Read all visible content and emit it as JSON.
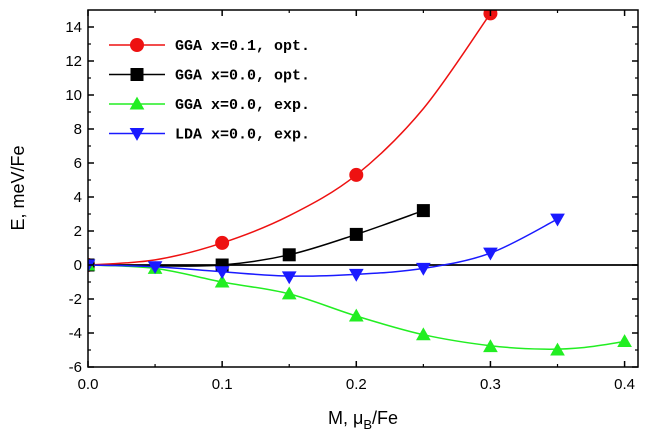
{
  "chart_data": {
    "type": "line",
    "xlabel": "M, μ",
    "xlabel_sub": "B",
    "xlabel_tail": "/Fe",
    "ylabel": "E, meV/Fe",
    "xlim": [
      0.0,
      0.41
    ],
    "ylim": [
      -6,
      15
    ],
    "xticks": [
      "0.0",
      "0.1",
      "0.2",
      "0.3",
      "0.4"
    ],
    "yticks": [
      "-6",
      "-4",
      "-2",
      "0",
      "2",
      "4",
      "6",
      "8",
      "10",
      "12",
      "14"
    ],
    "grid": false,
    "legend_position": "top-left",
    "zero_line": true,
    "series": [
      {
        "name": "GGA x=0.1, opt.",
        "color": "#ee1111",
        "marker": "circle",
        "x": [
          0.0,
          0.1,
          0.2,
          0.3
        ],
        "y": [
          0.0,
          1.3,
          5.3,
          14.8
        ],
        "curve": [
          [
            0.0,
            0.0
          ],
          [
            0.05,
            0.3
          ],
          [
            0.1,
            1.3
          ],
          [
            0.15,
            2.9
          ],
          [
            0.2,
            5.3
          ],
          [
            0.25,
            9.2
          ],
          [
            0.3,
            14.8
          ]
        ]
      },
      {
        "name": "GGA x=0.0, opt.",
        "color": "#000000",
        "marker": "square",
        "x": [
          0.0,
          0.1,
          0.15,
          0.2,
          0.25
        ],
        "y": [
          0.0,
          0.0,
          0.6,
          1.8,
          3.2
        ],
        "curve": [
          [
            0.0,
            0.0
          ],
          [
            0.05,
            -0.05
          ],
          [
            0.1,
            0.0
          ],
          [
            0.15,
            0.6
          ],
          [
            0.2,
            1.8
          ],
          [
            0.25,
            3.2
          ]
        ]
      },
      {
        "name": "GGA x=0.0, exp.",
        "color": "#22ee22",
        "marker": "triangle-up",
        "x": [
          0.0,
          0.05,
          0.1,
          0.15,
          0.2,
          0.25,
          0.3,
          0.35,
          0.4
        ],
        "y": [
          0.0,
          -0.2,
          -1.0,
          -1.7,
          -3.0,
          -4.1,
          -4.8,
          -5.0,
          -4.5
        ],
        "curve": [
          [
            0.0,
            0.0
          ],
          [
            0.05,
            -0.2
          ],
          [
            0.1,
            -1.0
          ],
          [
            0.15,
            -1.7
          ],
          [
            0.2,
            -3.0
          ],
          [
            0.25,
            -4.1
          ],
          [
            0.3,
            -4.75
          ],
          [
            0.34,
            -4.95
          ],
          [
            0.37,
            -4.85
          ],
          [
            0.4,
            -4.5
          ]
        ]
      },
      {
        "name": "LDA x=0.0, exp.",
        "color": "#1a1aff",
        "marker": "triangle-down",
        "x": [
          0.0,
          0.05,
          0.1,
          0.15,
          0.2,
          0.25,
          0.3,
          0.35
        ],
        "y": [
          0.0,
          -0.1,
          -0.4,
          -0.7,
          -0.55,
          -0.2,
          0.7,
          2.7
        ],
        "curve": [
          [
            0.0,
            0.0
          ],
          [
            0.05,
            -0.1
          ],
          [
            0.1,
            -0.4
          ],
          [
            0.15,
            -0.65
          ],
          [
            0.2,
            -0.55
          ],
          [
            0.25,
            -0.2
          ],
          [
            0.3,
            0.7
          ],
          [
            0.35,
            2.7
          ]
        ]
      }
    ]
  }
}
